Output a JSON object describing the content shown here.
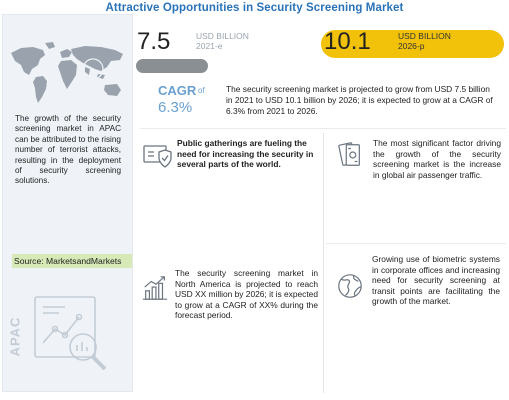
{
  "title": "Attractive Opportunities in Security Screening Market",
  "sidebar": {
    "text": "The growth of the security screening market in APAC can be attributed to the rising number of terrorist attacks, resulting in the deployment of security screening solutions.",
    "source": "Source: MarketsandMarkets",
    "region_label": "APAC"
  },
  "metrics": {
    "v2021": "7.5",
    "unit2021": "USD BILLION",
    "year2021": "2021-e",
    "v2026": "10.1",
    "unit2026": "USD BILLION",
    "year2026": "2026-p",
    "bar2021_fraction": 0.74,
    "bar_color_2021": "#8a8f94",
    "bar_color_2026": "#f2c20a"
  },
  "cagr": {
    "label": "CAGR",
    "of": "of",
    "value": "6.3%",
    "text": "The security screening market is projected to grow from USD 7.5 billion in 2021 to USD 10.1 billion by 2026; it is expected to grow at a CAGR of 6.3% from 2021 to 2026."
  },
  "cards": {
    "c1": "Public gatherings are fueling the need for increasing the security in several parts of the world.",
    "c2": "The most significant factor driving the growth of the security screening market is the increase in global air passenger traffic.",
    "c3": "The security screening market in North America is projected to reach USD XX million by 2026; it is expected to grow at a CAGR of XX% during the forecast period.",
    "c4": "Growing use of biometric systems in corporate offices and increasing need for security screening at transit points are facilitating the growth of the market."
  },
  "colors": {
    "accent": "#2a73b8",
    "cagr": "#6aa0cf",
    "source_bg": "#d6e9b6"
  },
  "icons": [
    "world-map-icon",
    "analytics-magnifier-icon",
    "shield-security-icon",
    "money-bills-icon",
    "growth-chart-icon",
    "globe-icon"
  ]
}
